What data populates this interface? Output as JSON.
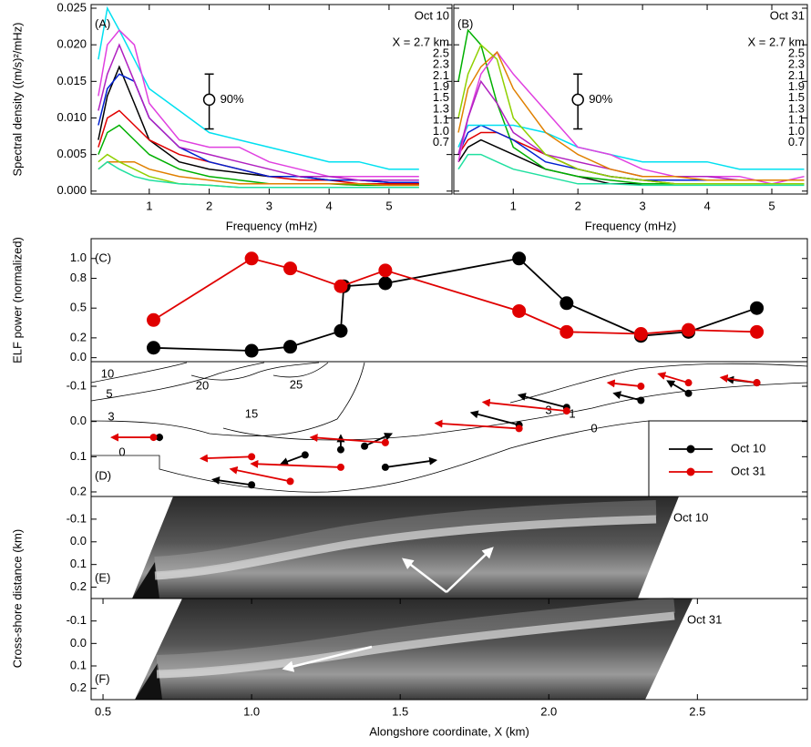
{
  "chart_data": [
    {
      "type": "spectrum",
      "panel_label": "(A)",
      "legend_title": "Oct 10",
      "legend_title_color": "#000000",
      "xlabel": "Frequency (mHz)",
      "ylabel": "Spectral density ((m/s)²/mHz)",
      "xlim": [
        0.03,
        6.05
      ],
      "xticks": [
        1,
        2,
        3,
        4,
        5
      ],
      "ylim": [
        -0.0004,
        0.0255
      ],
      "yticks": [
        {
          "value": 0,
          "label": "0.000"
        },
        {
          "value": 0.005,
          "label": "0.005"
        },
        {
          "value": 0.01,
          "label": "0.010"
        },
        {
          "value": 0.015,
          "label": "0.015"
        },
        {
          "value": 0.02,
          "label": "0.020"
        },
        {
          "value": 0.025,
          "label": "0.025"
        }
      ],
      "ytick_labels": true,
      "errorbar": {
        "x": 2,
        "y": 0.0125,
        "low": 0.0085,
        "high": 0.016,
        "label": "90%"
      },
      "x": [
        0.15,
        0.3,
        0.5,
        0.75,
        1.0,
        1.5,
        2,
        2.5,
        3,
        3.5,
        4,
        4.5,
        5,
        5.5
      ],
      "series": [
        {
          "name": "X = 2.7 km",
          "color": "#000000",
          "values": [
            0.007,
            0.013,
            0.017,
            0.012,
            0.007,
            0.004,
            0.003,
            0.0025,
            0.002,
            0.002,
            0.0015,
            0.0015,
            0.0012,
            0.001
          ]
        },
        {
          "name": "2.5",
          "color": "#e00000",
          "values": [
            0.006,
            0.01,
            0.011,
            0.009,
            0.007,
            0.005,
            0.004,
            0.003,
            0.002,
            0.0015,
            0.0015,
            0.001,
            0.001,
            0.001
          ]
        },
        {
          "name": "2.3",
          "color": "#00b000",
          "values": [
            0.005,
            0.008,
            0.009,
            0.007,
            0.005,
            0.003,
            0.002,
            0.0015,
            0.001,
            0.001,
            0.001,
            0.0008,
            0.0008,
            0.0008
          ]
        },
        {
          "name": "2.1",
          "color": "#0020d0",
          "values": [
            0.009,
            0.014,
            0.016,
            0.015,
            0.01,
            0.006,
            0.004,
            0.003,
            0.002,
            0.002,
            0.0015,
            0.0015,
            0.0012,
            0.0012
          ]
        },
        {
          "name": "1.9",
          "color": "#00e0f0",
          "values": [
            0.018,
            0.025,
            0.022,
            0.018,
            0.014,
            0.011,
            0.008,
            0.007,
            0.006,
            0.005,
            0.004,
            0.004,
            0.003,
            0.003
          ]
        },
        {
          "name": "1.5",
          "color": "#e040e0",
          "values": [
            0.013,
            0.02,
            0.022,
            0.02,
            0.012,
            0.007,
            0.006,
            0.006,
            0.004,
            0.003,
            0.002,
            0.002,
            0.002,
            0.002
          ]
        },
        {
          "name": "1.3",
          "color": "#b020c0",
          "values": [
            0.011,
            0.016,
            0.02,
            0.015,
            0.01,
            0.006,
            0.005,
            0.004,
            0.003,
            0.002,
            0.002,
            0.0015,
            0.0015,
            0.0015
          ]
        },
        {
          "name": "1.1",
          "color": "#e08000",
          "values": [
            0.003,
            0.004,
            0.004,
            0.004,
            0.003,
            0.002,
            0.0015,
            0.001,
            0.001,
            0.001,
            0.001,
            0.001,
            0.0008,
            0.0008
          ]
        },
        {
          "name": "1.0",
          "color": "#90d000",
          "values": [
            0.004,
            0.005,
            0.004,
            0.003,
            0.002,
            0.001,
            0.0008,
            0.0005,
            0.0005,
            0.0005,
            0.0005,
            0.0005,
            0.0005,
            0.0005
          ]
        },
        {
          "name": "0.7",
          "color": "#20e0a0",
          "values": [
            0.003,
            0.004,
            0.003,
            0.002,
            0.0015,
            0.001,
            0.0008,
            0.0005,
            0.0005,
            0.0005,
            0.0005,
            0.0005,
            0.0005,
            0.0005
          ]
        }
      ]
    },
    {
      "type": "spectrum",
      "panel_label": "(B)",
      "legend_title": "Oct 31",
      "legend_title_color": "#e00000",
      "xlabel": "Frequency (mHz)",
      "xlim": [
        0.08,
        5.55
      ],
      "xticks": [
        1,
        2,
        3,
        4,
        5
      ],
      "ylim": [
        -0.0004,
        0.0255
      ],
      "yticks": [
        0,
        0.005,
        0.01,
        0.015,
        0.02,
        0.025
      ],
      "ytick_labels": false,
      "errorbar": {
        "x": 2,
        "y": 0.0125,
        "low": 0.0085,
        "high": 0.016,
        "label": "90%"
      },
      "x": [
        0.15,
        0.3,
        0.5,
        0.75,
        1.0,
        1.5,
        2,
        2.5,
        3,
        3.5,
        4,
        4.5,
        5,
        5.5
      ],
      "series": [
        {
          "name": "X = 2.7 km",
          "color": "#000000",
          "values": [
            0.004,
            0.006,
            0.007,
            0.006,
            0.005,
            0.003,
            0.002,
            0.001,
            0.001,
            0.001,
            0.001,
            0.001,
            0.001,
            0.001
          ]
        },
        {
          "name": "2.5",
          "color": "#e00000",
          "values": [
            0.005,
            0.007,
            0.008,
            0.008,
            0.007,
            0.005,
            0.003,
            0.002,
            0.0015,
            0.001,
            0.001,
            0.001,
            0.001,
            0.001
          ]
        },
        {
          "name": "2.3",
          "color": "#00b000",
          "values": [
            0.015,
            0.022,
            0.02,
            0.012,
            0.006,
            0.003,
            0.002,
            0.0015,
            0.001,
            0.001,
            0.001,
            0.001,
            0.001,
            0.001
          ]
        },
        {
          "name": "2.1",
          "color": "#0020d0",
          "values": [
            0.005,
            0.008,
            0.009,
            0.008,
            0.007,
            0.004,
            0.003,
            0.002,
            0.0015,
            0.0015,
            0.0015,
            0.0015,
            0.0015,
            0.0015
          ]
        },
        {
          "name": "1.9",
          "color": "#00e0f0",
          "values": [
            0.006,
            0.009,
            0.009,
            0.009,
            0.009,
            0.008,
            0.006,
            0.005,
            0.004,
            0.004,
            0.004,
            0.003,
            0.003,
            0.003
          ]
        },
        {
          "name": "1.5",
          "color": "#e040e0",
          "values": [
            0.004,
            0.01,
            0.016,
            0.019,
            0.016,
            0.011,
            0.006,
            0.005,
            0.003,
            0.002,
            0.002,
            0.002,
            0.001,
            0.002
          ]
        },
        {
          "name": "1.3",
          "color": "#b020c0",
          "values": [
            0.005,
            0.01,
            0.015,
            0.012,
            0.008,
            0.005,
            0.004,
            0.003,
            0.002,
            0.002,
            0.002,
            0.0015,
            0.0015,
            0.0015
          ]
        },
        {
          "name": "1.1",
          "color": "#e08000",
          "values": [
            0.008,
            0.014,
            0.017,
            0.019,
            0.014,
            0.008,
            0.005,
            0.003,
            0.002,
            0.002,
            0.0015,
            0.0015,
            0.0015,
            0.0015
          ]
        },
        {
          "name": "1.0",
          "color": "#90d000",
          "values": [
            0.01,
            0.016,
            0.02,
            0.018,
            0.01,
            0.005,
            0.003,
            0.002,
            0.0015,
            0.001,
            0.001,
            0.001,
            0.001,
            0.001
          ]
        },
        {
          "name": "0.7",
          "color": "#20e0a0",
          "values": [
            0.003,
            0.005,
            0.005,
            0.004,
            0.003,
            0.002,
            0.001,
            0.001,
            0.0008,
            0.0008,
            0.0008,
            0.0008,
            0.0008,
            0.0008
          ]
        }
      ]
    },
    {
      "type": "elf",
      "panel_label": "(C)",
      "ylabel": "ELF power (normalized)",
      "xlim": [
        0.46,
        2.87
      ],
      "ylim": [
        -0.04,
        1.2
      ],
      "yticks": [
        {
          "value": 0,
          "label": "0.0"
        },
        0.2,
        0.5,
        0.8,
        {
          "value": 1,
          "label": "1.0"
        }
      ],
      "series": [
        {
          "name": "Oct 10",
          "color": "#000000",
          "x": [
            0.67,
            1.0,
            1.13,
            1.3,
            1.31,
            1.45,
            1.9,
            2.06,
            2.31,
            2.47,
            2.7
          ],
          "values": [
            0.1,
            0.07,
            0.11,
            0.27,
            0.72,
            0.75,
            1.0,
            0.55,
            0.22,
            0.26,
            0.5
          ]
        },
        {
          "name": "Oct 31",
          "color": "#e00000",
          "x": [
            0.67,
            1.0,
            1.13,
            1.3,
            1.45,
            1.9,
            2.06,
            2.31,
            2.47,
            2.7
          ],
          "values": [
            0.38,
            1.0,
            0.9,
            0.72,
            0.88,
            0.47,
            0.26,
            0.24,
            0.28,
            0.26
          ]
        }
      ]
    },
    {
      "type": "vector",
      "panel_label": "(D)",
      "legend": "lower right",
      "xlim": [
        0.46,
        2.87
      ],
      "ylim": [
        0.213,
        -0.17
      ],
      "yticks": [
        -0.1,
        {
          "value": 0,
          "label": "0.0"
        },
        0.1,
        0.2
      ],
      "contour_levels": [
        10,
        5,
        3,
        0,
        20,
        25,
        15,
        3,
        1,
        0
      ],
      "series": [
        {
          "name": "Oct 10",
          "color": "#000000",
          "x": [
            0.69,
            1.0,
            1.18,
            1.3,
            1.38,
            1.45,
            1.9,
            2.06,
            2.31,
            2.47,
            2.7
          ],
          "y": [
            0.045,
            0.18,
            0.095,
            0.08,
            0.07,
            0.13,
            0.01,
            -0.04,
            -0.06,
            -0.08,
            -0.11
          ],
          "x_end": [
            0.67,
            0.87,
            1.1,
            1.3,
            1.47,
            1.62,
            1.74,
            1.9,
            2.22,
            2.4,
            2.6
          ],
          "y_end": [
            0.045,
            0.165,
            0.12,
            0.04,
            0.035,
            0.11,
            -0.025,
            -0.075,
            -0.08,
            -0.115,
            -0.12
          ]
        },
        {
          "name": "Oct 31",
          "color": "#e00000",
          "x": [
            0.67,
            1.0,
            1.13,
            1.3,
            1.45,
            1.9,
            2.06,
            2.31,
            2.47,
            2.7
          ],
          "y": [
            0.045,
            0.1,
            0.17,
            0.13,
            0.06,
            0.02,
            -0.03,
            -0.1,
            -0.11,
            -0.11
          ],
          "x_end": [
            0.53,
            0.83,
            0.93,
            1.0,
            1.2,
            1.62,
            1.78,
            2.2,
            2.37,
            2.58
          ],
          "y_end": [
            0.045,
            0.105,
            0.135,
            0.12,
            0.045,
            0.005,
            -0.055,
            -0.11,
            -0.135,
            -0.125
          ]
        }
      ]
    },
    {
      "type": "image",
      "panel_label": "(E)",
      "annotation": "Oct 10",
      "annotation_color": "#000000",
      "ylabel": "Cross-shore distance (km)",
      "ylim": [
        0.25,
        -0.2
      ],
      "yticks": [
        -0.1,
        {
          "value": 0,
          "label": "0.0"
        },
        0.1,
        0.2
      ]
    },
    {
      "type": "image",
      "panel_label": "(F)",
      "annotation": "Oct 31",
      "annotation_color": "#e00000",
      "xlabel": "Alongshore coordinate, X (km)",
      "xlim": [
        0.46,
        2.87
      ],
      "xticks": [
        0.5,
        {
          "value": 1,
          "label": "1.0"
        },
        1.5,
        {
          "value": 2,
          "label": "2.0"
        },
        2.5
      ],
      "ylim": [
        0.25,
        -0.2
      ],
      "yticks": [
        -0.1,
        {
          "value": 0,
          "label": "0.0"
        },
        0.1,
        0.2
      ]
    }
  ]
}
